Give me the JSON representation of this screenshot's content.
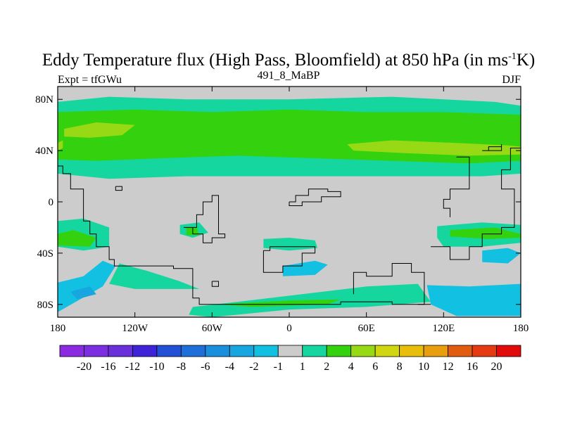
{
  "chart_data": {
    "type": "heatmap",
    "title": {
      "main": "Eddy Temperature flux (High Pass, Bloomfield) at 850 hPa (in ms",
      "superscript": "-1",
      "suffix": "K)"
    },
    "subtitle_left": "Expt = tfGWu",
    "subtitle_center": "491_8_MaBP",
    "subtitle_right": "DJF",
    "x_range": [
      -180,
      180
    ],
    "y_range": [
      -90,
      90
    ],
    "x_ticks": [
      {
        "value": -180,
        "label": "180"
      },
      {
        "value": -120,
        "label": "120W"
      },
      {
        "value": -60,
        "label": "60W"
      },
      {
        "value": 0,
        "label": "0"
      },
      {
        "value": 60,
        "label": "60E"
      },
      {
        "value": 120,
        "label": "120E"
      },
      {
        "value": 180,
        "label": "180"
      }
    ],
    "y_ticks": [
      {
        "value": 80,
        "label": "80N"
      },
      {
        "value": 40,
        "label": "40N"
      },
      {
        "value": 0,
        "label": "0"
      },
      {
        "value": -40,
        "label": "40S"
      },
      {
        "value": -80,
        "label": "80S"
      }
    ],
    "colorbar": {
      "colors": [
        "#8a2be2",
        "#7b2fe0",
        "#6a31da",
        "#3f23d8",
        "#2450d6",
        "#1e70d8",
        "#1a8fdb",
        "#17a6df",
        "#12c0e2",
        "#cccccc",
        "#16d6a0",
        "#33d10e",
        "#98d915",
        "#d0d60f",
        "#e8be0a",
        "#e89e0e",
        "#e25c10",
        "#e63a12",
        "#e20b0b"
      ],
      "labels": [
        "-20",
        "-16",
        "-12",
        "-10",
        "-8",
        "-6",
        "-4",
        "-2",
        "-1",
        "1",
        "2",
        "4",
        "6",
        "8",
        "10",
        "12",
        "16",
        "20"
      ]
    },
    "regions": [
      {
        "level": "1",
        "color": "#16d6a0",
        "points": [
          [
            -180,
            78
          ],
          [
            -140,
            82
          ],
          [
            -80,
            80
          ],
          [
            0,
            80
          ],
          [
            80,
            82
          ],
          [
            160,
            78
          ],
          [
            180,
            75
          ],
          [
            180,
            22
          ],
          [
            150,
            20
          ],
          [
            80,
            20
          ],
          [
            0,
            20
          ],
          [
            -80,
            20
          ],
          [
            -140,
            18
          ],
          [
            -180,
            22
          ]
        ]
      },
      {
        "level": "2",
        "color": "#33d10e",
        "points": [
          [
            -180,
            70
          ],
          [
            -120,
            72
          ],
          [
            -60,
            70
          ],
          [
            0,
            72
          ],
          [
            60,
            70
          ],
          [
            120,
            70
          ],
          [
            180,
            68
          ],
          [
            180,
            32
          ],
          [
            140,
            30
          ],
          [
            80,
            32
          ],
          [
            20,
            34
          ],
          [
            -40,
            36
          ],
          [
            -100,
            34
          ],
          [
            -150,
            32
          ],
          [
            -180,
            33
          ]
        ]
      },
      {
        "level": "4",
        "color": "#98d915",
        "points": [
          [
            -175,
            57
          ],
          [
            -150,
            62
          ],
          [
            -120,
            60
          ],
          [
            -130,
            52
          ],
          [
            -155,
            50
          ],
          [
            -175,
            51
          ]
        ]
      },
      {
        "level": "4",
        "color": "#98d915",
        "points": [
          [
            45,
            45
          ],
          [
            80,
            48
          ],
          [
            130,
            46
          ],
          [
            170,
            44
          ],
          [
            180,
            43
          ],
          [
            180,
            37
          ],
          [
            140,
            36
          ],
          [
            90,
            38
          ],
          [
            50,
            40
          ]
        ]
      },
      {
        "level": "4",
        "color": "#98d915",
        "points": [
          [
            -180,
            46
          ],
          [
            -176,
            48
          ],
          [
            -176,
            42
          ],
          [
            -180,
            40
          ]
        ]
      },
      {
        "level": "1",
        "color": "#16d6a0",
        "points": [
          [
            -180,
            -15
          ],
          [
            -160,
            -13
          ],
          [
            -140,
            -20
          ],
          [
            -140,
            -35
          ],
          [
            -160,
            -38
          ],
          [
            -180,
            -35
          ]
        ]
      },
      {
        "level": "2",
        "color": "#33d10e",
        "points": [
          [
            -180,
            -25
          ],
          [
            -168,
            -22
          ],
          [
            -150,
            -28
          ],
          [
            -155,
            -35
          ],
          [
            -180,
            -34
          ]
        ]
      },
      {
        "level": "1",
        "color": "#16d6a0",
        "points": [
          [
            -85,
            -18
          ],
          [
            -70,
            -16
          ],
          [
            -63,
            -24
          ],
          [
            -75,
            -28
          ],
          [
            -85,
            -25
          ]
        ]
      },
      {
        "level": "2",
        "color": "#33d10e",
        "points": [
          [
            -80,
            -20
          ],
          [
            -72,
            -20
          ],
          [
            -70,
            -26
          ],
          [
            -80,
            -26
          ]
        ]
      },
      {
        "level": "1",
        "color": "#16d6a0",
        "points": [
          [
            115,
            -19
          ],
          [
            150,
            -16
          ],
          [
            180,
            -18
          ],
          [
            180,
            -32
          ],
          [
            150,
            -35
          ],
          [
            120,
            -35
          ],
          [
            115,
            -28
          ]
        ]
      },
      {
        "level": "2",
        "color": "#33d10e",
        "points": [
          [
            125,
            -22
          ],
          [
            160,
            -20
          ],
          [
            180,
            -25
          ],
          [
            180,
            -28
          ],
          [
            155,
            -29
          ],
          [
            125,
            -27
          ]
        ]
      },
      {
        "level": "1",
        "color": "#16d6a0",
        "points": [
          [
            -20,
            -29
          ],
          [
            0,
            -28
          ],
          [
            20,
            -30
          ],
          [
            22,
            -36
          ],
          [
            0,
            -38
          ],
          [
            -20,
            -36
          ]
        ]
      },
      {
        "level": "-1",
        "color": "#12c0e2",
        "points": [
          [
            -5,
            -50
          ],
          [
            20,
            -46
          ],
          [
            30,
            -49
          ],
          [
            20,
            -57
          ],
          [
            -5,
            -58
          ]
        ]
      },
      {
        "level": "-1",
        "color": "#12c0e2",
        "points": [
          [
            150,
            -38
          ],
          [
            170,
            -36
          ],
          [
            180,
            -40
          ],
          [
            170,
            -48
          ],
          [
            150,
            -47
          ]
        ]
      },
      {
        "level": "-1",
        "color": "#12c0e2",
        "points": [
          [
            -180,
            -63
          ],
          [
            -160,
            -58
          ],
          [
            -145,
            -46
          ],
          [
            -135,
            -50
          ],
          [
            -145,
            -66
          ],
          [
            -180,
            -86
          ]
        ]
      },
      {
        "level": "-2",
        "color": "#17a6df",
        "points": [
          [
            -170,
            -70
          ],
          [
            -155,
            -66
          ],
          [
            -150,
            -72
          ],
          [
            -165,
            -76
          ]
        ]
      },
      {
        "level": "-1",
        "color": "#12c0e2",
        "points": [
          [
            107,
            -65
          ],
          [
            140,
            -66
          ],
          [
            180,
            -64
          ],
          [
            180,
            -89
          ],
          [
            130,
            -89
          ],
          [
            110,
            -80
          ]
        ]
      },
      {
        "level": "1",
        "color": "#16d6a0",
        "points": [
          [
            -132,
            -48
          ],
          [
            -110,
            -54
          ],
          [
            -85,
            -62
          ],
          [
            -70,
            -68
          ],
          [
            -120,
            -68
          ],
          [
            -140,
            -64
          ]
        ]
      },
      {
        "level": "1",
        "color": "#16d6a0",
        "points": [
          [
            -75,
            -82
          ],
          [
            -40,
            -78
          ],
          [
            10,
            -72
          ],
          [
            60,
            -66
          ],
          [
            100,
            -64
          ],
          [
            110,
            -78
          ],
          [
            60,
            -82
          ],
          [
            0,
            -84
          ],
          [
            -60,
            -90
          ],
          [
            -78,
            -88
          ]
        ]
      },
      {
        "level": "2",
        "color": "#33d10e",
        "points": [
          [
            -55,
            -80
          ],
          [
            0,
            -77
          ],
          [
            40,
            -76
          ],
          [
            30,
            -80
          ],
          [
            -30,
            -82
          ]
        ]
      }
    ],
    "coastlines": [
      [
        [
          -180,
          28
        ],
        [
          -176,
          28
        ],
        [
          -176,
          22
        ],
        [
          -170,
          22
        ],
        [
          -170,
          10
        ],
        [
          -160,
          10
        ],
        [
          -160,
          -15
        ],
        [
          -155,
          -15
        ],
        [
          -155,
          -25
        ],
        [
          -150,
          -25
        ],
        [
          -150,
          -35
        ],
        [
          -145,
          -35
        ],
        [
          -140,
          -45
        ],
        [
          -136,
          -50
        ],
        [
          -110,
          -50
        ],
        [
          -90,
          -52
        ],
        [
          -75,
          -58
        ],
        [
          -75,
          -75
        ],
        [
          -70,
          -80
        ],
        [
          -40,
          -80
        ],
        [
          0,
          -80
        ],
        [
          40,
          -78
        ],
        [
          80,
          -80
        ],
        [
          110,
          -80
        ]
      ],
      [
        [
          -82,
          -20
        ],
        [
          -72,
          -10
        ],
        [
          -67,
          0
        ],
        [
          -60,
          5
        ],
        [
          -55,
          -10
        ],
        [
          -55,
          -25
        ],
        [
          -50,
          -28
        ],
        [
          -60,
          -32
        ],
        [
          -67,
          -25
        ],
        [
          -75,
          -20
        ],
        [
          -82,
          -20
        ]
      ],
      [
        [
          -20,
          -38
        ],
        [
          -15,
          -35
        ],
        [
          0,
          -35
        ],
        [
          15,
          -35
        ],
        [
          20,
          -40
        ],
        [
          10,
          -50
        ],
        [
          -5,
          -55
        ],
        [
          -20,
          -50
        ],
        [
          -20,
          -38
        ]
      ],
      [
        [
          0,
          0
        ],
        [
          5,
          5
        ],
        [
          15,
          10
        ],
        [
          30,
          8
        ],
        [
          40,
          4
        ],
        [
          25,
          0
        ],
        [
          10,
          -3
        ],
        [
          0,
          0
        ]
      ],
      [
        [
          130,
          35
        ],
        [
          140,
          28
        ],
        [
          140,
          10
        ],
        [
          125,
          2
        ],
        [
          120,
          -5
        ],
        [
          125,
          -12
        ]
      ],
      [
        [
          110,
          -35
        ],
        [
          125,
          -45
        ],
        [
          140,
          -35
        ],
        [
          150,
          -25
        ],
        [
          165,
          -20
        ],
        [
          175,
          -12
        ],
        [
          175,
          10
        ],
        [
          165,
          25
        ],
        [
          172,
          42
        ],
        [
          180,
          35
        ]
      ],
      [
        [
          100,
          -80
        ],
        [
          105,
          -55
        ],
        [
          95,
          -48
        ],
        [
          80,
          -58
        ],
        [
          60,
          -55
        ],
        [
          50,
          -72
        ]
      ],
      [
        [
          150,
          40
        ],
        [
          155,
          43
        ],
        [
          165,
          45
        ],
        [
          165,
          40
        ],
        [
          150,
          40
        ]
      ],
      [
        [
          -135,
          12
        ],
        [
          -130,
          12
        ],
        [
          -130,
          9
        ],
        [
          -135,
          9
        ],
        [
          -135,
          12
        ]
      ],
      [
        [
          -60,
          -62
        ],
        [
          -55,
          -62
        ],
        [
          -55,
          -66
        ],
        [
          -60,
          -66
        ],
        [
          -60,
          -62
        ]
      ]
    ]
  }
}
